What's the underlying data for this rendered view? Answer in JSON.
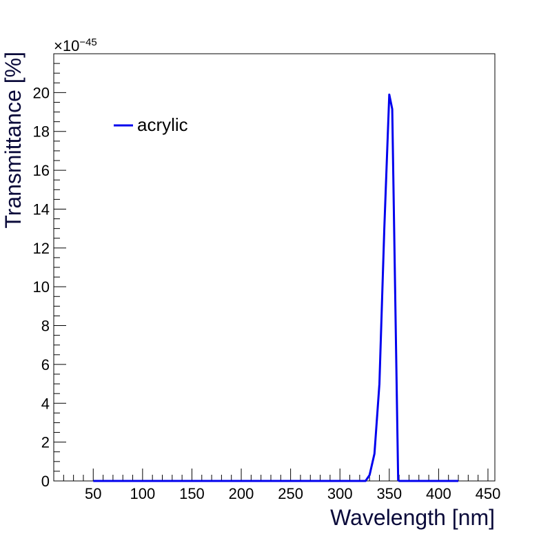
{
  "chart_data": {
    "type": "line",
    "title": "",
    "xlabel": "Wavelength [nm]",
    "ylabel": "Transmittance [%]",
    "y_multiplier": "×10",
    "y_exponent": "−45",
    "xlim": [
      10,
      457
    ],
    "ylim": [
      0,
      22
    ],
    "x_ticks": [
      50,
      100,
      150,
      200,
      250,
      300,
      350,
      400,
      450
    ],
    "y_ticks": [
      0,
      2,
      4,
      6,
      8,
      10,
      12,
      14,
      16,
      18,
      20
    ],
    "legend_position": "top-left",
    "grid": false,
    "series": [
      {
        "name": "acrylic",
        "color": "#0000ee",
        "x": [
          50,
          100,
          200,
          300,
          326,
          330,
          335,
          340,
          345,
          350,
          353,
          359,
          360,
          400,
          420
        ],
        "y": [
          0,
          0,
          0,
          0,
          0,
          0.3,
          1.4,
          5.0,
          13.0,
          19.9,
          19.15,
          0.05,
          0,
          0,
          0
        ]
      }
    ]
  }
}
